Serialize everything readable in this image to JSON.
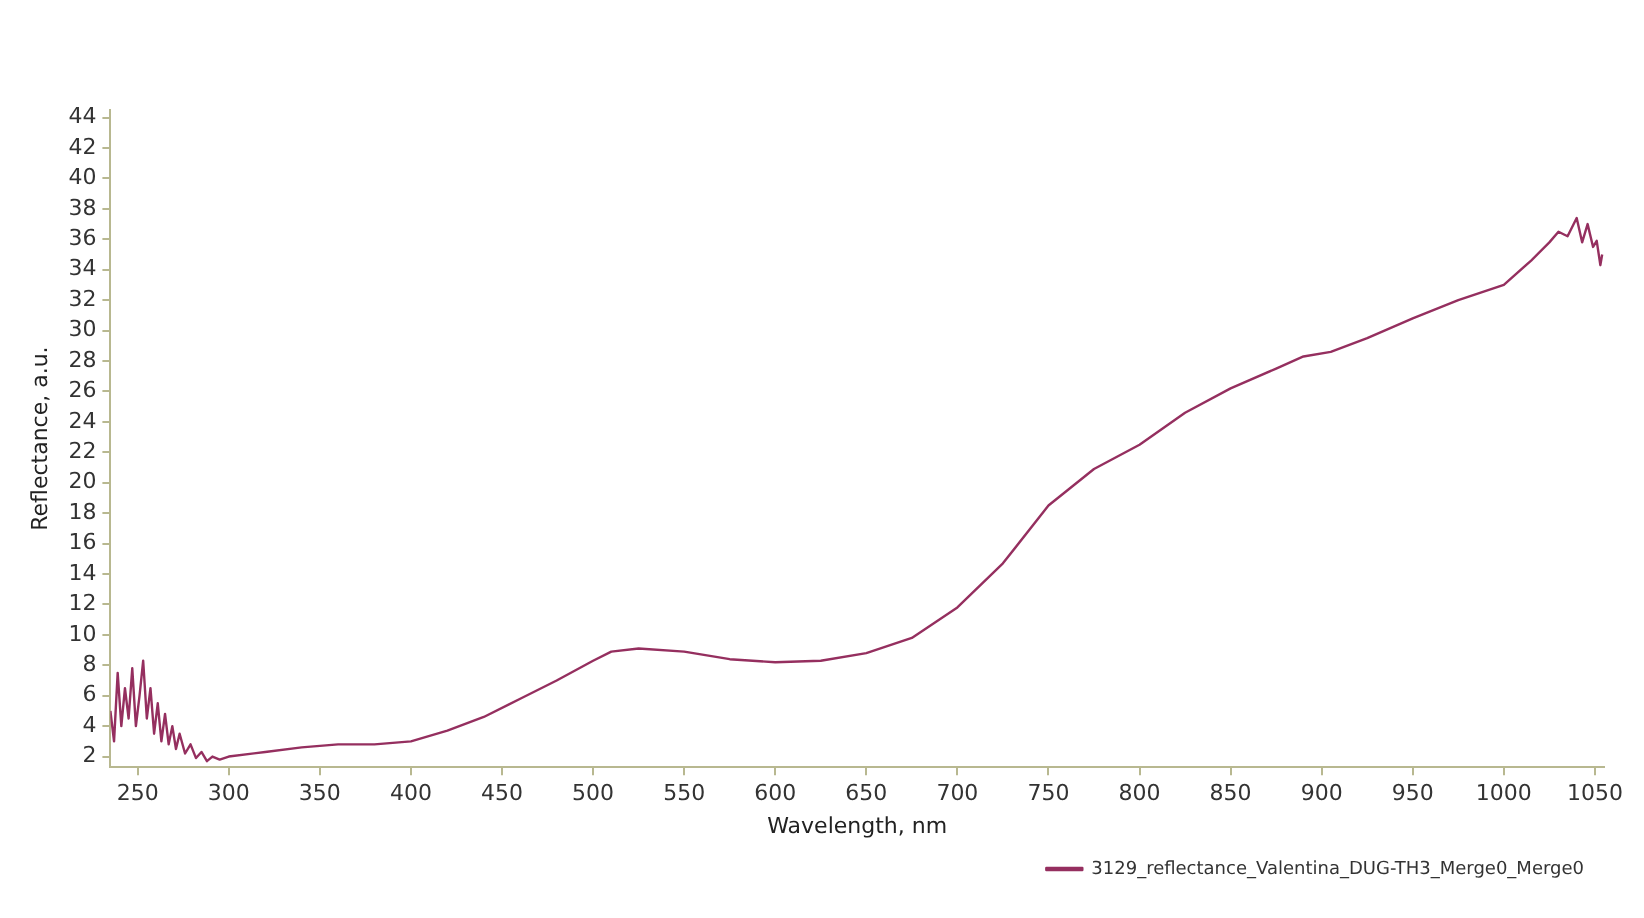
{
  "chart_data": {
    "type": "line",
    "xlabel": "Wavelength, nm",
    "ylabel": "Reflectance, a.u.",
    "xlim": [
      235,
      1055
    ],
    "ylim": [
      1.3,
      44.5
    ],
    "xticks": [
      250,
      300,
      350,
      400,
      450,
      500,
      550,
      600,
      650,
      700,
      750,
      800,
      850,
      900,
      950,
      1000,
      1050
    ],
    "yticks": [
      2,
      4,
      6,
      8,
      10,
      12,
      14,
      16,
      18,
      20,
      22,
      24,
      26,
      28,
      30,
      32,
      34,
      36,
      38,
      40,
      42,
      44
    ],
    "grid": false,
    "legend": "bottom right",
    "marker": "none",
    "line_style": "solid",
    "series": [
      {
        "name": "3129_reflectance_Valentina_DUG-TH3_Merge0_Merge0",
        "color": "#952f5f",
        "x": [
          235,
          237,
          239,
          241,
          243,
          245,
          247,
          249,
          251,
          253,
          255,
          257,
          259,
          261,
          263,
          265,
          267,
          269,
          271,
          273,
          276,
          279,
          282,
          285,
          288,
          291,
          295,
          300,
          320,
          340,
          360,
          380,
          400,
          420,
          440,
          460,
          480,
          500,
          510,
          525,
          550,
          575,
          600,
          625,
          650,
          675,
          700,
          725,
          750,
          775,
          800,
          825,
          850,
          875,
          890,
          905,
          925,
          950,
          975,
          1000,
          1015,
          1025,
          1030,
          1035,
          1040,
          1043,
          1046,
          1049,
          1051,
          1053,
          1054
        ],
        "values": [
          5,
          3,
          7.5,
          4,
          6.5,
          4.5,
          7.8,
          4,
          6,
          8.3,
          4.5,
          6.5,
          3.5,
          5.5,
          3,
          4.8,
          2.8,
          4,
          2.5,
          3.5,
          2.2,
          2.8,
          1.9,
          2.3,
          1.7,
          2,
          1.8,
          2,
          2.3,
          2.6,
          2.8,
          2.8,
          3,
          3.7,
          4.6,
          5.8,
          7,
          8.3,
          8.9,
          9.1,
          8.9,
          8.4,
          8.2,
          8.3,
          8.8,
          9.8,
          11.8,
          14.7,
          18.5,
          20.9,
          22.5,
          24.6,
          26.2,
          27.5,
          28.3,
          28.6,
          29.5,
          30.8,
          32,
          33,
          34.6,
          35.8,
          36.5,
          36.2,
          37.4,
          35.8,
          37,
          35.5,
          35.9,
          34.3,
          35
        ]
      }
    ]
  }
}
